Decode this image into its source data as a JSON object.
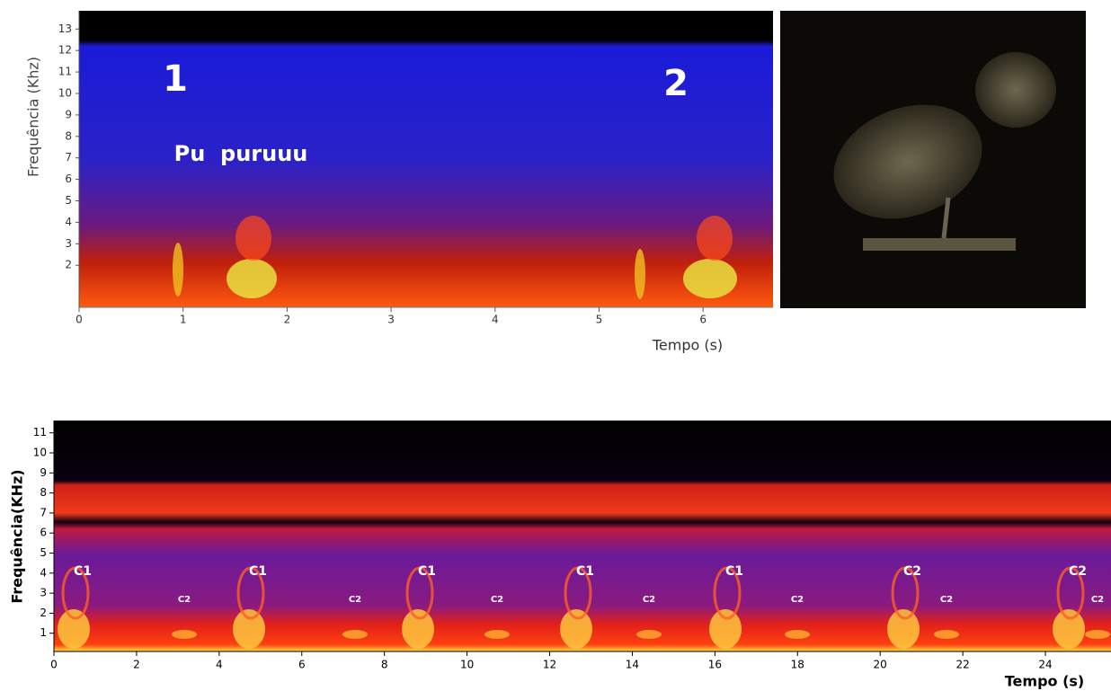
{
  "top_panel": {
    "y_axis_label": "Frequência (Khz)",
    "x_axis_label": "Tempo (s)",
    "yticks": [
      2,
      3,
      4,
      5,
      6,
      7,
      8,
      9,
      10,
      11,
      12,
      13
    ],
    "xticks": [
      0,
      1,
      2,
      3,
      4,
      5,
      6
    ],
    "annotations": {
      "call_1": "1",
      "call_2": "2",
      "syllables": "Pu  puruuu"
    }
  },
  "bottom_panel": {
    "y_axis_label": "Frequência(KHz)",
    "x_axis_label": "Tempo (s)",
    "yticks": [
      1,
      2,
      3,
      4,
      5,
      6,
      7,
      8,
      9,
      10,
      11
    ],
    "xticks": [
      0,
      2,
      4,
      6,
      8,
      10,
      12,
      14,
      16,
      18,
      20,
      22,
      24
    ],
    "call_labels": [
      "C1",
      "C1",
      "C1",
      "C1",
      "C1",
      "C2",
      "C2"
    ],
    "small_labels": [
      "C2",
      "C2",
      "C2",
      "C2",
      "C2",
      "C2",
      "C2"
    ]
  }
}
